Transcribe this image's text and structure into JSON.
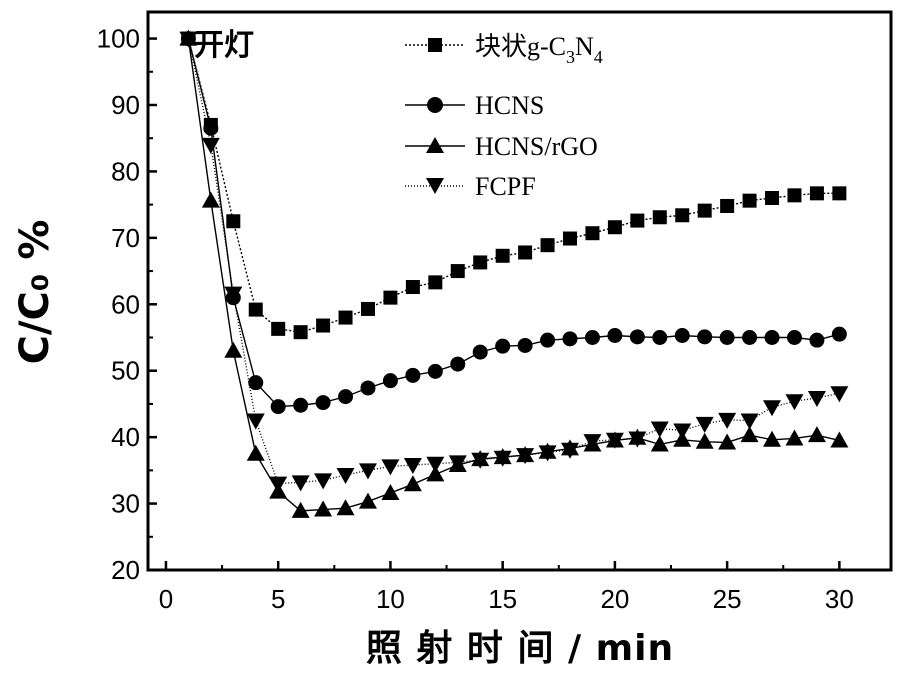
{
  "chart_data": {
    "type": "line",
    "xlabel": "照 射 时 间 / min",
    "ylabel": "C/C₀ %",
    "xlim": [
      -0.8,
      32.3
    ],
    "ylim": [
      20,
      104
    ],
    "xticks": [
      0,
      5,
      10,
      15,
      20,
      25,
      30
    ],
    "yticks": [
      20,
      30,
      40,
      50,
      60,
      70,
      80,
      90,
      100
    ],
    "legend_position": "top-right",
    "annotation": {
      "text": "开灯",
      "x": 1,
      "y": 100
    },
    "series": [
      {
        "name": "块状g-C3N4",
        "legend_label": "块状g-C",
        "legend_sub1": "3",
        "legend_mid": "N",
        "legend_sub2": "4",
        "marker": "square",
        "x": [
          1,
          2,
          3,
          4,
          5,
          6,
          7,
          8,
          9,
          10,
          11,
          12,
          13,
          14,
          15,
          16,
          17,
          18,
          19,
          20,
          21,
          22,
          23,
          24,
          25,
          26,
          27,
          28,
          29,
          30
        ],
        "y": [
          100,
          87,
          72.5,
          59.2,
          56.3,
          55.8,
          56.8,
          58,
          59.3,
          61,
          62.6,
          63.3,
          65,
          66.3,
          67.3,
          67.8,
          68.9,
          69.9,
          70.7,
          71.6,
          72.6,
          73.1,
          73.4,
          74.1,
          74.8,
          75.6,
          76.0,
          76.4,
          76.7,
          76.7
        ]
      },
      {
        "name": "HCNS",
        "legend_label": "HCNS",
        "marker": "circle",
        "x": [
          1,
          2,
          3,
          4,
          5,
          6,
          7,
          8,
          9,
          10,
          11,
          12,
          13,
          14,
          15,
          16,
          17,
          18,
          19,
          20,
          21,
          22,
          23,
          24,
          25,
          26,
          27,
          28,
          29,
          30
        ],
        "y": [
          100,
          86.5,
          61,
          48.2,
          44.6,
          44.8,
          45.2,
          46.1,
          47.4,
          48.5,
          49.3,
          49.9,
          51,
          52.8,
          53.7,
          53.8,
          54.6,
          54.8,
          55,
          55.3,
          55.1,
          55,
          55.3,
          55.1,
          55,
          55,
          55,
          55,
          54.6,
          55.5
        ]
      },
      {
        "name": "HCNS/rGO",
        "legend_label": "HCNS/rGO",
        "marker": "triangle-up",
        "x": [
          1,
          2,
          3,
          4,
          5,
          6,
          7,
          8,
          9,
          10,
          11,
          12,
          13,
          14,
          15,
          16,
          17,
          18,
          19,
          20,
          21,
          22,
          23,
          24,
          25,
          26,
          27,
          28,
          29,
          30
        ],
        "y": [
          100,
          75.6,
          53,
          37.5,
          31.8,
          28.9,
          29.1,
          29.3,
          30.3,
          31.6,
          32.9,
          34.4,
          35.8,
          36.7,
          37,
          37.3,
          37.8,
          38.3,
          38.9,
          39.5,
          39.9,
          38.9,
          39.6,
          39.3,
          39.2,
          40.3,
          39.6,
          39.8,
          40.3,
          39.5
        ]
      },
      {
        "name": "FCPF",
        "legend_label": "FCPF",
        "marker": "triangle-down",
        "x": [
          1,
          2,
          3,
          4,
          5,
          6,
          7,
          8,
          9,
          10,
          11,
          12,
          13,
          14,
          15,
          16,
          17,
          18,
          19,
          20,
          21,
          22,
          23,
          24,
          25,
          26,
          27,
          28,
          29,
          30
        ],
        "y": [
          100,
          84,
          61.6,
          42.5,
          33,
          33.2,
          33.5,
          34.3,
          35,
          35.6,
          35.8,
          36,
          36.2,
          36.6,
          36.9,
          37.3,
          37.7,
          38.1,
          39.4,
          39.6,
          39.8,
          41.3,
          41,
          42,
          42.6,
          42.5,
          44.5,
          45.4,
          45.9,
          46.6
        ]
      }
    ]
  }
}
